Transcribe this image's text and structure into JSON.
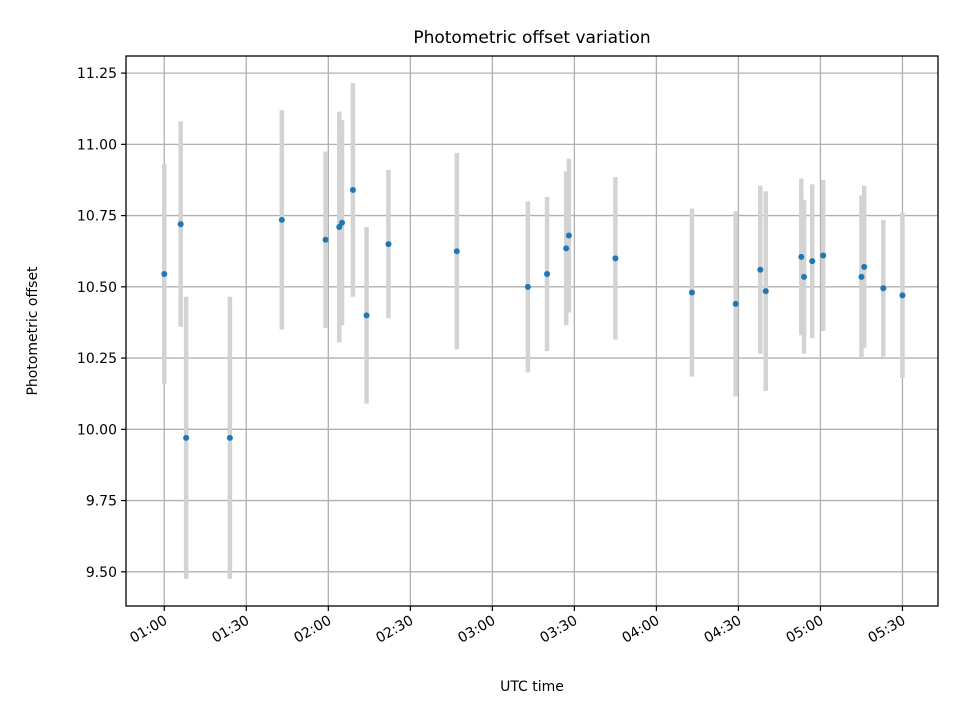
{
  "chart_data": {
    "type": "scatter",
    "title": "Photometric offset variation",
    "xlabel": "UTC time",
    "ylabel": "Photometric offset",
    "x_tick_labels": [
      "01:00",
      "01:30",
      "02:00",
      "02:30",
      "03:00",
      "03:30",
      "04:00",
      "04:30",
      "05:00",
      "05:30"
    ],
    "y_tick_labels": [
      "9.50",
      "9.75",
      "10.00",
      "10.25",
      "10.50",
      "10.75",
      "11.00",
      "11.25"
    ],
    "y_ticks": [
      9.5,
      9.75,
      10.0,
      10.25,
      10.5,
      10.75,
      11.0,
      11.25
    ],
    "xlim": [
      "00:46",
      "05:43"
    ],
    "ylim": [
      9.38,
      11.31
    ],
    "grid": true,
    "series": [
      {
        "points": [
          {
            "x": "01:00",
            "y": 10.545,
            "err": 0.385
          },
          {
            "x": "01:06",
            "y": 10.72,
            "err": 0.36
          },
          {
            "x": "01:08",
            "y": 9.97,
            "err": 0.495
          },
          {
            "x": "01:24",
            "y": 9.97,
            "err": 0.495
          },
          {
            "x": "01:43",
            "y": 10.735,
            "err": 0.385
          },
          {
            "x": "01:59",
            "y": 10.665,
            "err": 0.31
          },
          {
            "x": "02:04",
            "y": 10.71,
            "err": 0.405
          },
          {
            "x": "02:05",
            "y": 10.725,
            "err": 0.36
          },
          {
            "x": "02:09",
            "y": 10.84,
            "err": 0.375
          },
          {
            "x": "02:14",
            "y": 10.4,
            "err": 0.31
          },
          {
            "x": "02:22",
            "y": 10.65,
            "err": 0.26
          },
          {
            "x": "02:47",
            "y": 10.625,
            "err": 0.345
          },
          {
            "x": "03:13",
            "y": 10.5,
            "err": 0.3
          },
          {
            "x": "03:20",
            "y": 10.545,
            "err": 0.27
          },
          {
            "x": "03:27",
            "y": 10.635,
            "err": 0.27
          },
          {
            "x": "03:28",
            "y": 10.68,
            "err": 0.27
          },
          {
            "x": "03:45",
            "y": 10.6,
            "err": 0.285
          },
          {
            "x": "04:13",
            "y": 10.48,
            "err": 0.295
          },
          {
            "x": "04:29",
            "y": 10.44,
            "err": 0.325
          },
          {
            "x": "04:38",
            "y": 10.56,
            "err": 0.295
          },
          {
            "x": "04:40",
            "y": 10.485,
            "err": 0.35
          },
          {
            "x": "04:53",
            "y": 10.605,
            "err": 0.275
          },
          {
            "x": "04:54",
            "y": 10.535,
            "err": 0.27
          },
          {
            "x": "04:57",
            "y": 10.59,
            "err": 0.27
          },
          {
            "x": "05:01",
            "y": 10.61,
            "err": 0.265
          },
          {
            "x": "05:15",
            "y": 10.535,
            "err": 0.285
          },
          {
            "x": "05:16",
            "y": 10.57,
            "err": 0.285
          },
          {
            "x": "05:23",
            "y": 10.495,
            "err": 0.24
          },
          {
            "x": "05:30",
            "y": 10.47,
            "err": 0.29
          }
        ]
      }
    ]
  }
}
